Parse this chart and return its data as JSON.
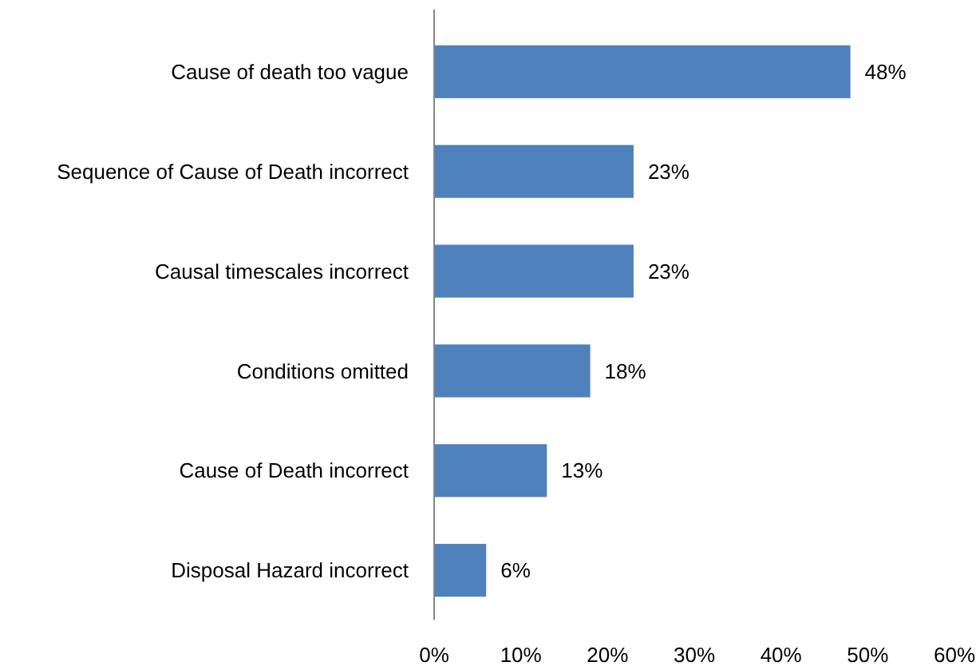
{
  "chart_data": {
    "type": "bar",
    "orientation": "horizontal",
    "categories": [
      "Cause of death too vague",
      "Sequence of Cause of Death incorrect",
      "Causal timescales incorrect",
      "Conditions omitted",
      "Cause of Death incorrect",
      "Disposal Hazard incorrect"
    ],
    "values": [
      48,
      23,
      23,
      18,
      13,
      6
    ],
    "value_labels": [
      "48%",
      "23%",
      "23%",
      "18%",
      "13%",
      "6%"
    ],
    "color": "#4f81bd",
    "xlim": [
      0,
      60
    ],
    "xticks": [
      {
        "value": 0,
        "label": "0%"
      },
      {
        "value": 10,
        "label": "10%"
      },
      {
        "value": 20,
        "label": "20%"
      },
      {
        "value": 30,
        "label": "30%"
      },
      {
        "value": 40,
        "label": "40%"
      },
      {
        "value": 50,
        "label": "50%"
      },
      {
        "value": 60,
        "label": "60%"
      }
    ],
    "grid": false
  }
}
